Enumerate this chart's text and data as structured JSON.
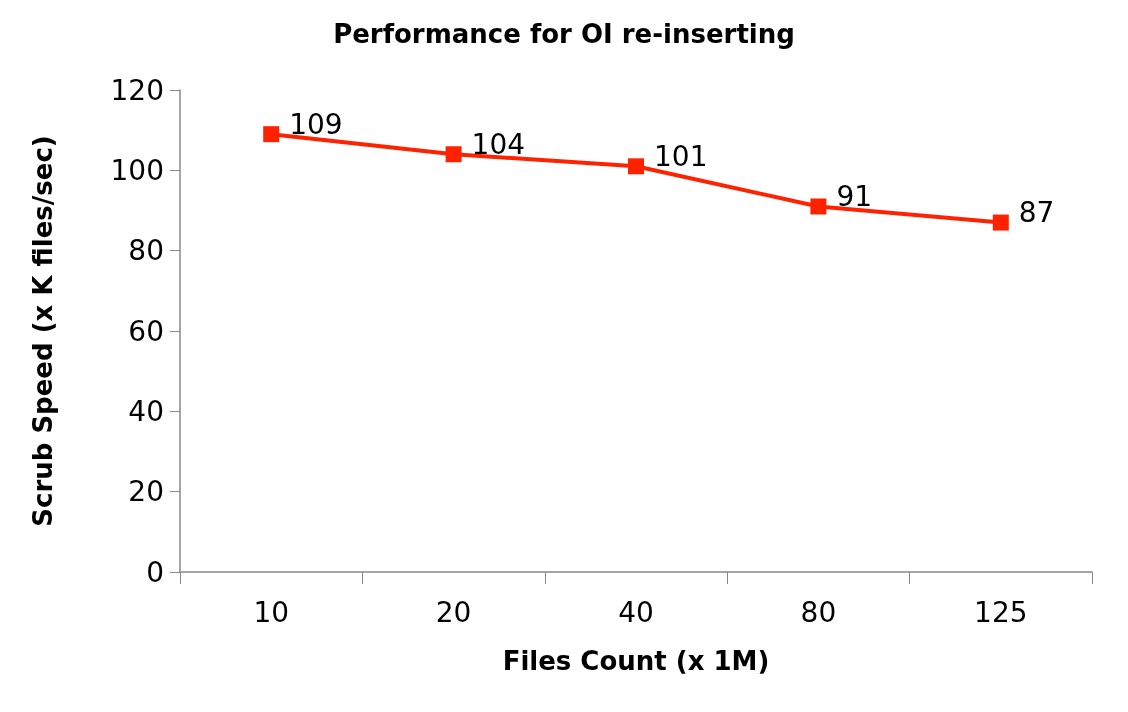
{
  "chart_data": {
    "type": "line",
    "title": "Performance for OI re-inserting",
    "xlabel": "Files Count (x 1M)",
    "ylabel": "Scrub Speed (x K files/sec)",
    "categories": [
      "10",
      "20",
      "40",
      "80",
      "125"
    ],
    "series": [
      {
        "color": "#ff2200",
        "values": [
          109,
          104,
          101,
          91,
          87
        ]
      }
    ],
    "ylim": [
      0,
      120
    ],
    "yticks": [
      0,
      20,
      40,
      60,
      80,
      100,
      120
    ],
    "grid": false,
    "marker": "square",
    "line_style": "solid",
    "data_labels": true
  }
}
